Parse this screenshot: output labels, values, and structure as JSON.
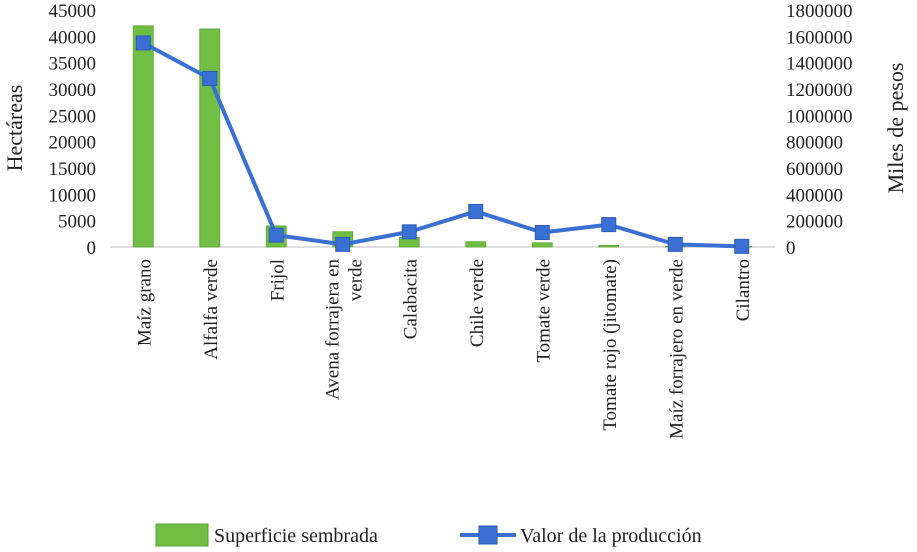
{
  "chart_data": {
    "type": "bar",
    "title": "",
    "categories": [
      "Maíz grano",
      "Alfalfa verde",
      "Frijol",
      "Avena forrajera en verde",
      "Calabacita",
      "Chile verde",
      "Tomate verde",
      "Tomate rojo (jitomate)",
      "Maíz forrajero en verde",
      "Cilantro"
    ],
    "category_lines": [
      [
        "Maíz grano"
      ],
      [
        "Alfalfa verde"
      ],
      [
        "Frijol"
      ],
      [
        "Avena forrajera en",
        "verde"
      ],
      [
        "Calabacita"
      ],
      [
        "Chile verde"
      ],
      [
        "Tomate verde"
      ],
      [
        "Tomate rojo (jitomate)"
      ],
      [
        "Maíz forrajero en verde"
      ],
      [
        "Cilantro"
      ]
    ],
    "ylabel": "Hectáreas",
    "y2label": "Miles de pesos",
    "ylim": [
      0,
      45000
    ],
    "y2lim": [
      0,
      1800000
    ],
    "yticks": [
      "45000",
      "40000",
      "35000",
      "30000",
      "25000",
      "20000",
      "15000",
      "10000",
      "5000",
      "0"
    ],
    "y2ticks": [
      "1800000",
      "1600000",
      "1400000",
      "1200000",
      "1000000",
      "800000",
      "600000",
      "400000",
      "200000",
      "0"
    ],
    "legend_position": "bottom",
    "series": [
      {
        "name": "Superficie sembrada",
        "type": "bar",
        "axis": "left",
        "color": "#70bf44",
        "values": [
          42000,
          41400,
          4000,
          2900,
          1800,
          1000,
          800,
          300,
          150,
          100
        ]
      },
      {
        "name": "Valor de la producción",
        "type": "line",
        "axis": "right",
        "color": "#3a6fd4",
        "marker": "square",
        "values": [
          1550000,
          1280000,
          90000,
          20000,
          115000,
          270000,
          110000,
          170000,
          20000,
          5000
        ]
      }
    ]
  }
}
